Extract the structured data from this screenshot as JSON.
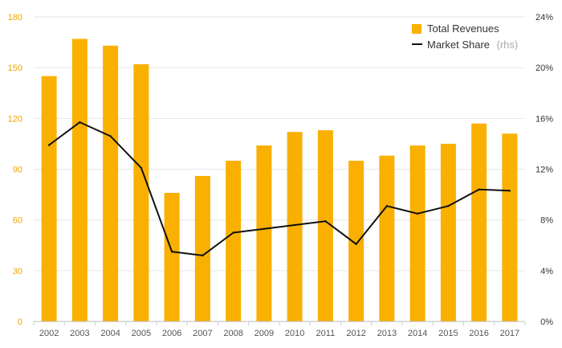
{
  "chart_data": {
    "type": "bar",
    "categories": [
      "2002",
      "2003",
      "2004",
      "2005",
      "2006",
      "2007",
      "2008",
      "2009",
      "2010",
      "2011",
      "2012",
      "2013",
      "2014",
      "2015",
      "2016",
      "2017"
    ],
    "series": [
      {
        "name": "Total Revenues",
        "type": "bar",
        "axis": "left",
        "color": "#f9b000",
        "values": [
          145,
          167,
          163,
          152,
          76,
          86,
          95,
          104,
          112,
          113,
          95,
          98,
          104,
          105,
          117,
          111
        ]
      },
      {
        "name": "Market Share",
        "note": "(rhs)",
        "type": "line",
        "axis": "right",
        "color": "#111111",
        "values": [
          13.9,
          15.7,
          14.6,
          12.1,
          5.5,
          5.2,
          7.0,
          7.3,
          7.6,
          7.9,
          6.1,
          9.1,
          8.5,
          9.1,
          10.4,
          10.3
        ]
      }
    ],
    "y_left": {
      "min": 0,
      "max": 180,
      "ticks": [
        "0",
        "30",
        "60",
        "90",
        "120",
        "150",
        "180"
      ],
      "color": "#f0a500"
    },
    "y_right": {
      "min": 0,
      "max": 24,
      "ticks": [
        "0%",
        "4%",
        "8%",
        "12%",
        "16%",
        "20%",
        "24%"
      ]
    },
    "grid": true,
    "legend_position": "top-right",
    "title": "",
    "xlabel": "",
    "ylabel": ""
  }
}
